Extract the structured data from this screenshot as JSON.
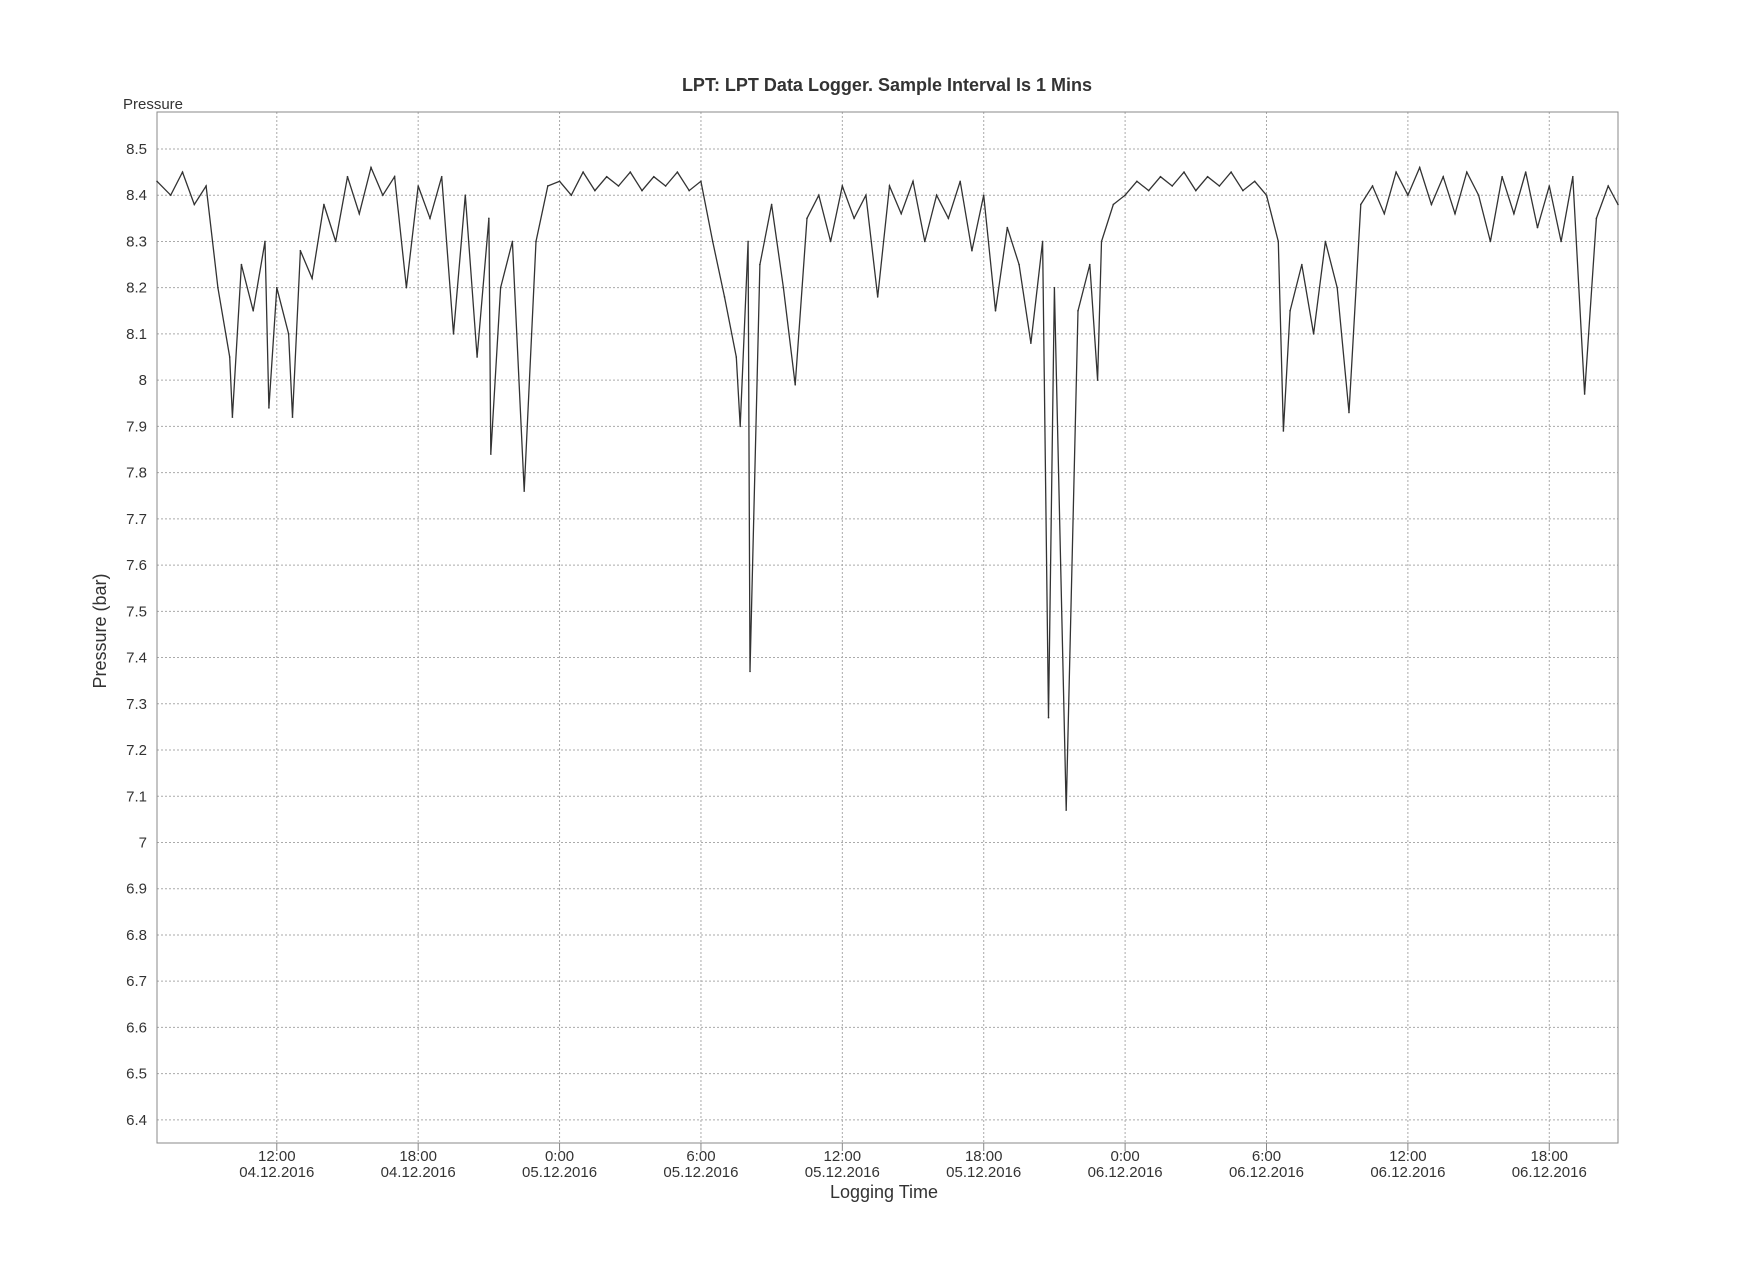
{
  "chart_data": {
    "type": "line",
    "title": "LPT: LPT Data Logger.  Sample Interval Is 1 Mins",
    "series_label": "Pressure",
    "ylabel": "Pressure (bar)",
    "xlabel": "Logging Time",
    "ylim": [
      6.35,
      8.58
    ],
    "xlim": [
      "2016-12-04 06:55",
      "2016-12-06 20:55"
    ],
    "grid": true,
    "line_color": "#333333",
    "yticks": [
      8.5,
      8.4,
      8.3,
      8.2,
      8.1,
      8,
      7.9,
      7.8,
      7.7,
      7.6,
      7.5,
      7.4,
      7.3,
      7.2,
      7.1,
      7,
      6.9,
      6.8,
      6.7,
      6.6,
      6.5,
      6.4
    ],
    "xticks": [
      {
        "t": "2016-12-04 12:00",
        "time": "12:00",
        "date": "04.12.2016"
      },
      {
        "t": "2016-12-04 18:00",
        "time": "18:00",
        "date": "04.12.2016"
      },
      {
        "t": "2016-12-05 00:00",
        "time": "0:00",
        "date": "05.12.2016"
      },
      {
        "t": "2016-12-05 06:00",
        "time": "6:00",
        "date": "05.12.2016"
      },
      {
        "t": "2016-12-05 12:00",
        "time": "12:00",
        "date": "05.12.2016"
      },
      {
        "t": "2016-12-05 18:00",
        "time": "18:00",
        "date": "05.12.2016"
      },
      {
        "t": "2016-12-06 00:00",
        "time": "0:00",
        "date": "06.12.2016"
      },
      {
        "t": "2016-12-06 06:00",
        "time": "6:00",
        "date": "06.12.2016"
      },
      {
        "t": "2016-12-06 12:00",
        "time": "12:00",
        "date": "06.12.2016"
      },
      {
        "t": "2016-12-06 18:00",
        "time": "18:00",
        "date": "06.12.2016"
      }
    ],
    "points": [
      [
        "2016-12-04 06:55",
        8.43
      ],
      [
        "2016-12-04 07:30",
        8.4
      ],
      [
        "2016-12-04 08:00",
        8.45
      ],
      [
        "2016-12-04 08:30",
        8.38
      ],
      [
        "2016-12-04 09:00",
        8.42
      ],
      [
        "2016-12-04 09:30",
        8.2
      ],
      [
        "2016-12-04 10:00",
        8.05
      ],
      [
        "2016-12-04 10:07",
        7.92
      ],
      [
        "2016-12-04 10:30",
        8.25
      ],
      [
        "2016-12-04 11:00",
        8.15
      ],
      [
        "2016-12-04 11:30",
        8.3
      ],
      [
        "2016-12-04 11:40",
        7.94
      ],
      [
        "2016-12-04 12:00",
        8.2
      ],
      [
        "2016-12-04 12:30",
        8.1
      ],
      [
        "2016-12-04 12:40",
        7.92
      ],
      [
        "2016-12-04 13:00",
        8.28
      ],
      [
        "2016-12-04 13:30",
        8.22
      ],
      [
        "2016-12-04 14:00",
        8.38
      ],
      [
        "2016-12-04 14:30",
        8.3
      ],
      [
        "2016-12-04 15:00",
        8.44
      ],
      [
        "2016-12-04 15:30",
        8.36
      ],
      [
        "2016-12-04 16:00",
        8.46
      ],
      [
        "2016-12-04 16:30",
        8.4
      ],
      [
        "2016-12-04 17:00",
        8.44
      ],
      [
        "2016-12-04 17:30",
        8.2
      ],
      [
        "2016-12-04 18:00",
        8.42
      ],
      [
        "2016-12-04 18:30",
        8.35
      ],
      [
        "2016-12-04 19:00",
        8.44
      ],
      [
        "2016-12-04 19:30",
        8.1
      ],
      [
        "2016-12-04 20:00",
        8.4
      ],
      [
        "2016-12-04 20:30",
        8.05
      ],
      [
        "2016-12-04 21:00",
        8.35
      ],
      [
        "2016-12-04 21:05",
        7.84
      ],
      [
        "2016-12-04 21:30",
        8.2
      ],
      [
        "2016-12-04 22:00",
        8.3
      ],
      [
        "2016-12-04 22:30",
        7.76
      ],
      [
        "2016-12-04 23:00",
        8.3
      ],
      [
        "2016-12-04 23:30",
        8.42
      ],
      [
        "2016-12-05 00:00",
        8.43
      ],
      [
        "2016-12-05 00:30",
        8.4
      ],
      [
        "2016-12-05 01:00",
        8.45
      ],
      [
        "2016-12-05 01:30",
        8.41
      ],
      [
        "2016-12-05 02:00",
        8.44
      ],
      [
        "2016-12-05 02:30",
        8.42
      ],
      [
        "2016-12-05 03:00",
        8.45
      ],
      [
        "2016-12-05 03:30",
        8.41
      ],
      [
        "2016-12-05 04:00",
        8.44
      ],
      [
        "2016-12-05 04:30",
        8.42
      ],
      [
        "2016-12-05 05:00",
        8.45
      ],
      [
        "2016-12-05 05:30",
        8.41
      ],
      [
        "2016-12-05 06:00",
        8.43
      ],
      [
        "2016-12-05 06:30",
        8.3
      ],
      [
        "2016-12-05 07:00",
        8.18
      ],
      [
        "2016-12-05 07:30",
        8.05
      ],
      [
        "2016-12-05 07:40",
        7.9
      ],
      [
        "2016-12-05 08:00",
        8.3
      ],
      [
        "2016-12-05 08:05",
        7.37
      ],
      [
        "2016-12-05 08:30",
        8.25
      ],
      [
        "2016-12-05 09:00",
        8.38
      ],
      [
        "2016-12-05 09:30",
        8.2
      ],
      [
        "2016-12-05 10:00",
        7.99
      ],
      [
        "2016-12-05 10:30",
        8.35
      ],
      [
        "2016-12-05 11:00",
        8.4
      ],
      [
        "2016-12-05 11:30",
        8.3
      ],
      [
        "2016-12-05 12:00",
        8.42
      ],
      [
        "2016-12-05 12:30",
        8.35
      ],
      [
        "2016-12-05 13:00",
        8.4
      ],
      [
        "2016-12-05 13:30",
        8.18
      ],
      [
        "2016-12-05 14:00",
        8.42
      ],
      [
        "2016-12-05 14:30",
        8.36
      ],
      [
        "2016-12-05 15:00",
        8.43
      ],
      [
        "2016-12-05 15:30",
        8.3
      ],
      [
        "2016-12-05 16:00",
        8.4
      ],
      [
        "2016-12-05 16:30",
        8.35
      ],
      [
        "2016-12-05 17:00",
        8.43
      ],
      [
        "2016-12-05 17:30",
        8.28
      ],
      [
        "2016-12-05 18:00",
        8.4
      ],
      [
        "2016-12-05 18:30",
        8.15
      ],
      [
        "2016-12-05 19:00",
        8.33
      ],
      [
        "2016-12-05 19:30",
        8.25
      ],
      [
        "2016-12-05 20:00",
        8.08
      ],
      [
        "2016-12-05 20:30",
        8.3
      ],
      [
        "2016-12-05 20:45",
        7.27
      ],
      [
        "2016-12-05 21:00",
        8.2
      ],
      [
        "2016-12-05 21:30",
        7.07
      ],
      [
        "2016-12-05 22:00",
        8.15
      ],
      [
        "2016-12-05 22:30",
        8.25
      ],
      [
        "2016-12-05 22:50",
        8.0
      ],
      [
        "2016-12-05 23:00",
        8.3
      ],
      [
        "2016-12-05 23:30",
        8.38
      ],
      [
        "2016-12-06 00:00",
        8.4
      ],
      [
        "2016-12-06 00:30",
        8.43
      ],
      [
        "2016-12-06 01:00",
        8.41
      ],
      [
        "2016-12-06 01:30",
        8.44
      ],
      [
        "2016-12-06 02:00",
        8.42
      ],
      [
        "2016-12-06 02:30",
        8.45
      ],
      [
        "2016-12-06 03:00",
        8.41
      ],
      [
        "2016-12-06 03:30",
        8.44
      ],
      [
        "2016-12-06 04:00",
        8.42
      ],
      [
        "2016-12-06 04:30",
        8.45
      ],
      [
        "2016-12-06 05:00",
        8.41
      ],
      [
        "2016-12-06 05:30",
        8.43
      ],
      [
        "2016-12-06 06:00",
        8.4
      ],
      [
        "2016-12-06 06:30",
        8.3
      ],
      [
        "2016-12-06 06:43",
        7.89
      ],
      [
        "2016-12-06 07:00",
        8.15
      ],
      [
        "2016-12-06 07:30",
        8.25
      ],
      [
        "2016-12-06 08:00",
        8.1
      ],
      [
        "2016-12-06 08:30",
        8.3
      ],
      [
        "2016-12-06 09:00",
        8.2
      ],
      [
        "2016-12-06 09:30",
        7.93
      ],
      [
        "2016-12-06 10:00",
        8.38
      ],
      [
        "2016-12-06 10:30",
        8.42
      ],
      [
        "2016-12-06 11:00",
        8.36
      ],
      [
        "2016-12-06 11:30",
        8.45
      ],
      [
        "2016-12-06 12:00",
        8.4
      ],
      [
        "2016-12-06 12:30",
        8.46
      ],
      [
        "2016-12-06 13:00",
        8.38
      ],
      [
        "2016-12-06 13:30",
        8.44
      ],
      [
        "2016-12-06 14:00",
        8.36
      ],
      [
        "2016-12-06 14:30",
        8.45
      ],
      [
        "2016-12-06 15:00",
        8.4
      ],
      [
        "2016-12-06 15:30",
        8.3
      ],
      [
        "2016-12-06 16:00",
        8.44
      ],
      [
        "2016-12-06 16:30",
        8.36
      ],
      [
        "2016-12-06 17:00",
        8.45
      ],
      [
        "2016-12-06 17:30",
        8.33
      ],
      [
        "2016-12-06 18:00",
        8.42
      ],
      [
        "2016-12-06 18:30",
        8.3
      ],
      [
        "2016-12-06 19:00",
        8.44
      ],
      [
        "2016-12-06 19:30",
        7.97
      ],
      [
        "2016-12-06 20:00",
        8.35
      ],
      [
        "2016-12-06 20:30",
        8.42
      ],
      [
        "2016-12-06 20:55",
        8.38
      ]
    ]
  }
}
